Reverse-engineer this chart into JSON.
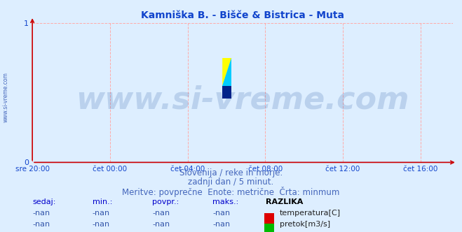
{
  "title": "Kamniška B. - Bišče & Bistrica - Muta",
  "title_color": "#1144cc",
  "bg_color": "#ddeeff",
  "plot_bg_color": "#ddeeff",
  "xaxis_labels": [
    "sre 20:00",
    "čet 00:00",
    "čet 04:00",
    "čet 08:00",
    "čet 12:00",
    "čet 16:00"
  ],
  "xaxis_ticks": [
    0,
    240,
    480,
    720,
    960,
    1200
  ],
  "xlim": [
    0,
    1300
  ],
  "ylim": [
    0,
    1
  ],
  "yticks": [
    0,
    1
  ],
  "grid_color": "#ffaaaa",
  "grid_style": "--",
  "axis_color": "#cc0000",
  "spine_color": "#cc0000",
  "watermark_text": "www.si-vreme.com",
  "watermark_color": "#1e4fa0",
  "watermark_alpha": 0.18,
  "watermark_fontsize": 32,
  "subtitle1": "Slovenija / reke in morje.",
  "subtitle2": "zadnji dan / 5 minut.",
  "subtitle3": "Meritve: povprečne  Enote: metrične  Črta: minmum",
  "subtitle_color": "#4466bb",
  "subtitle_fontsize": 8.5,
  "left_label": "www.si-vreme.com",
  "left_label_color": "#4466bb",
  "table_headers": [
    "sedaj:",
    "min.:",
    "povpr.:",
    "maks.:",
    "RAZLIKA"
  ],
  "table_header_colors": [
    "#0000cc",
    "#0000cc",
    "#0000cc",
    "#0000cc",
    "#000000"
  ],
  "table_row1": [
    "-nan",
    "-nan",
    "-nan",
    "-nan"
  ],
  "table_row2": [
    "-nan",
    "-nan",
    "-nan",
    "-nan"
  ],
  "legend_items": [
    "temperatura[C]",
    "pretok[m3/s]"
  ],
  "legend_colors": [
    "#dd0000",
    "#00bb00"
  ],
  "table_color": "#3355aa",
  "line_color_blue": "#0000cc",
  "logo_yellow": "#ffff00",
  "logo_cyan": "#00ccff",
  "logo_darkblue": "#002288"
}
